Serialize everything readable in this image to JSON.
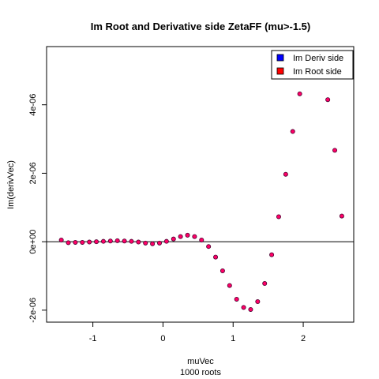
{
  "chart_data": {
    "type": "scatter",
    "title": "Im Root and Derivative side ZetaFF (mu>-1.5)",
    "xlabel": "muVec",
    "subtitle": "1000 roots",
    "ylabel": "Im(derivVec)",
    "xlim": [
      -1.66,
      2.72
    ],
    "ylim": [
      -2.35e-06,
      5.7e-06
    ],
    "xticks": [
      {
        "value": -1,
        "label": "-1"
      },
      {
        "value": 0,
        "label": "0"
      },
      {
        "value": 1,
        "label": "1"
      },
      {
        "value": 2,
        "label": "2"
      }
    ],
    "yticks": [
      {
        "value": -2e-06,
        "label": "-2e-06"
      },
      {
        "value": 0,
        "label": "0e+00"
      },
      {
        "value": 2e-06,
        "label": "2e-06"
      },
      {
        "value": 4e-06,
        "label": "4e-06"
      }
    ],
    "hline": 0,
    "legend": {
      "position": "top-right",
      "entries": [
        {
          "label": "Im Deriv side",
          "color": "#0000ff"
        },
        {
          "label": "Im Root side",
          "color": "#ff0000"
        }
      ]
    },
    "marker_fill": "#ff0066",
    "marker_edge": "#4a0030",
    "points": [
      {
        "x": -1.45,
        "y": 5e-08
      },
      {
        "x": -1.35,
        "y": -3e-08
      },
      {
        "x": -1.25,
        "y": -2e-08
      },
      {
        "x": -1.15,
        "y": -2e-08
      },
      {
        "x": -1.05,
        "y": -1e-08
      },
      {
        "x": -0.95,
        "y": 0.0
      },
      {
        "x": -0.85,
        "y": 1e-08
      },
      {
        "x": -0.75,
        "y": 2e-08
      },
      {
        "x": -0.65,
        "y": 3e-08
      },
      {
        "x": -0.55,
        "y": 2e-08
      },
      {
        "x": -0.45,
        "y": 1e-08
      },
      {
        "x": -0.35,
        "y": -1e-08
      },
      {
        "x": -0.25,
        "y": -4e-08
      },
      {
        "x": -0.15,
        "y": -6e-08
      },
      {
        "x": -0.05,
        "y": -4e-08
      },
      {
        "x": 0.05,
        "y": 1e-08
      },
      {
        "x": 0.15,
        "y": 8e-08
      },
      {
        "x": 0.25,
        "y": 1.5e-07
      },
      {
        "x": 0.35,
        "y": 1.9e-07
      },
      {
        "x": 0.45,
        "y": 1.5e-07
      },
      {
        "x": 0.55,
        "y": 5e-08
      },
      {
        "x": 0.65,
        "y": -1.4e-07
      },
      {
        "x": 0.75,
        "y": -4.5e-07
      },
      {
        "x": 0.85,
        "y": -8.5e-07
      },
      {
        "x": 0.95,
        "y": -1.28e-06
      },
      {
        "x": 1.05,
        "y": -1.68e-06
      },
      {
        "x": 1.15,
        "y": -1.92e-06
      },
      {
        "x": 1.25,
        "y": -1.98e-06
      },
      {
        "x": 1.35,
        "y": -1.75e-06
      },
      {
        "x": 1.45,
        "y": -1.22e-06
      },
      {
        "x": 1.55,
        "y": -3.8e-07
      },
      {
        "x": 1.65,
        "y": 7.3e-07
      },
      {
        "x": 1.75,
        "y": 1.97e-06
      },
      {
        "x": 1.85,
        "y": 3.22e-06
      },
      {
        "x": 1.95,
        "y": 4.32e-06
      },
      {
        "x": 2.35,
        "y": 4.15e-06
      },
      {
        "x": 2.45,
        "y": 2.67e-06
      },
      {
        "x": 2.55,
        "y": 7.5e-07
      }
    ]
  }
}
